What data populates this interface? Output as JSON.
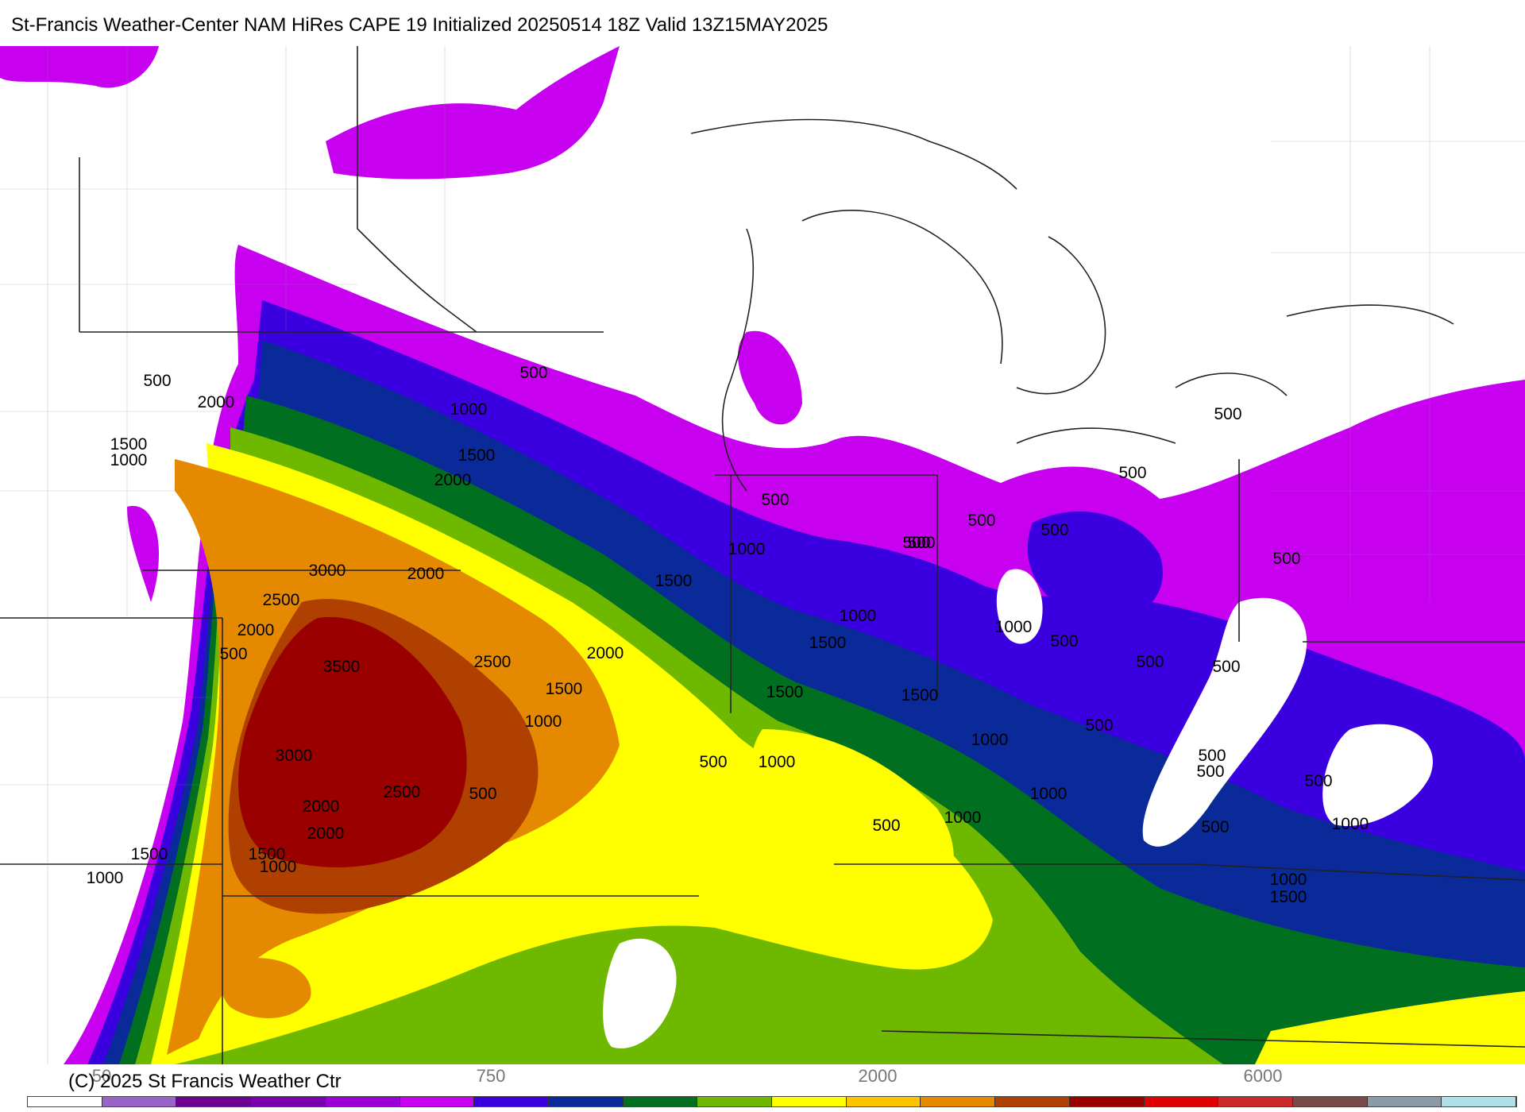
{
  "title": "St-Francis Weather-Center NAM HiRes CAPE  19 Initialized 20250514 18Z Valid 13Z15MAY2025",
  "copyright": "(C) 2025 St Francis Weather Ctr",
  "colorbar": {
    "tick_labels": [
      "50",
      "750",
      "2000",
      "6000"
    ],
    "colors": [
      "#ffffff",
      "#9a63c8",
      "#6c0090",
      "#7b00b0",
      "#9c00d8",
      "#c800f0",
      "#3a00e0",
      "#0a2a9a",
      "#007020",
      "#6fb800",
      "#ffff00",
      "#ffc400",
      "#e58a00",
      "#b04000",
      "#9a0000",
      "#e00000",
      "#cc2a2a",
      "#7a4a4a",
      "#8a9aa6",
      "#aee0ea"
    ]
  },
  "map_labels": [
    {
      "id": "c500-nw",
      "text": "500"
    },
    {
      "id": "c2000-nw",
      "text": "2000"
    },
    {
      "id": "c1500-w",
      "text": "1500"
    },
    {
      "id": "c1000-w",
      "text": "1000"
    },
    {
      "id": "c1000-n",
      "text": "1000"
    },
    {
      "id": "c500-n",
      "text": "500"
    },
    {
      "id": "c1500-n",
      "text": "1500"
    },
    {
      "id": "c2000-n",
      "text": "2000"
    },
    {
      "id": "c3000-a",
      "text": "3000"
    },
    {
      "id": "c2000-c",
      "text": "2000"
    },
    {
      "id": "c2500-a",
      "text": "2500"
    },
    {
      "id": "c2000-d",
      "text": "2000"
    },
    {
      "id": "c500-d",
      "text": "500"
    },
    {
      "id": "c3500",
      "text": "3500"
    },
    {
      "id": "c2500-b",
      "text": "2500"
    },
    {
      "id": "c2000-e",
      "text": "2000"
    },
    {
      "id": "c1500-e",
      "text": "1500"
    },
    {
      "id": "c1000-e",
      "text": "1000"
    },
    {
      "id": "c3000-b",
      "text": "3000"
    },
    {
      "id": "c2500-c",
      "text": "2500"
    },
    {
      "id": "c2000-f",
      "text": "2000"
    },
    {
      "id": "c2000-g",
      "text": "2000"
    },
    {
      "id": "c1500-f",
      "text": "1500"
    },
    {
      "id": "c1000-f",
      "text": "1000"
    },
    {
      "id": "c1500-g",
      "text": "1500"
    },
    {
      "id": "c1000-g",
      "text": "1000"
    },
    {
      "id": "c500-e",
      "text": "500"
    },
    {
      "id": "c500-f",
      "text": "500"
    },
    {
      "id": "c1000-h",
      "text": "1000"
    },
    {
      "id": "c1500-h",
      "text": "1500"
    },
    {
      "id": "c1000-i",
      "text": "1000"
    },
    {
      "id": "c500-g",
      "text": "500"
    },
    {
      "id": "c1000-j",
      "text": "1000"
    },
    {
      "id": "c1500-i",
      "text": "1500"
    },
    {
      "id": "c1500-j",
      "text": "1500"
    },
    {
      "id": "c1500-k",
      "text": "1500"
    },
    {
      "id": "c1000-k",
      "text": "1000"
    },
    {
      "id": "c1000-l",
      "text": "1000"
    },
    {
      "id": "c500-h",
      "text": "500"
    },
    {
      "id": "c1000-m",
      "text": "1000"
    },
    {
      "id": "c500-i",
      "text": "500"
    },
    {
      "id": "c500-j",
      "text": "500"
    },
    {
      "id": "c500-k",
      "text": "500"
    },
    {
      "id": "c500-l",
      "text": "500"
    },
    {
      "id": "c500-m",
      "text": "500"
    },
    {
      "id": "c500-n2",
      "text": "500"
    },
    {
      "id": "c500-o",
      "text": "500"
    },
    {
      "id": "c500-p",
      "text": "500"
    },
    {
      "id": "c500-q",
      "text": "500"
    },
    {
      "id": "c500-r",
      "text": "500"
    },
    {
      "id": "c500-s",
      "text": "500"
    },
    {
      "id": "c500-t",
      "text": "500"
    },
    {
      "id": "c500-u",
      "text": "500"
    },
    {
      "id": "c500-v",
      "text": "500"
    },
    {
      "id": "c1000-n2",
      "text": "1000"
    },
    {
      "id": "c1000-o",
      "text": "1000"
    },
    {
      "id": "c1500-l",
      "text": "1500"
    },
    {
      "id": "c500-w",
      "text": "500"
    },
    {
      "id": "c1000-p",
      "text": "1000"
    }
  ]
}
